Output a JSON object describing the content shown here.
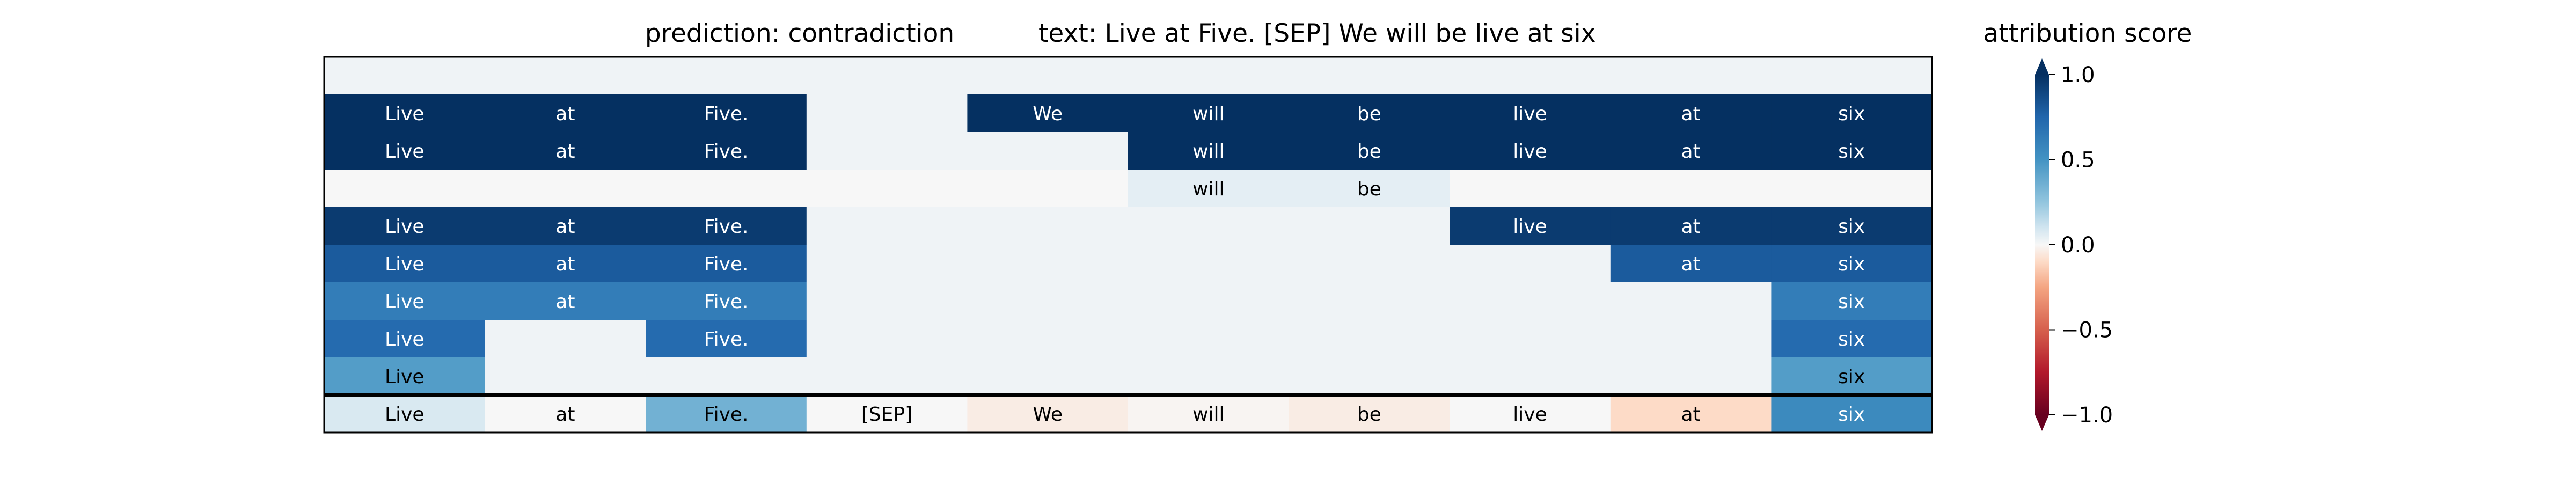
{
  "chart_data": {
    "type": "heatmap",
    "title_prediction": "prediction:  contradiction",
    "title_text": "text:  Live at Five. [SEP] We will be live at six",
    "colorbar": {
      "title": "attribution score",
      "ticks": [
        "1.0",
        "0.5",
        "0.0",
        "−0.5",
        "−1.0"
      ],
      "tick_values": [
        1.0,
        0.5,
        0.0,
        -0.5,
        -1.0
      ],
      "range": [
        -1.0,
        1.0
      ],
      "colormap": "RdBu"
    },
    "tokens": [
      "Live",
      "at",
      "Five.",
      "[SEP]",
      "We",
      "will",
      "be",
      "live",
      "at",
      "six"
    ],
    "coalition_rows": [
      {
        "cells": [
          0,
          0,
          0,
          0,
          0,
          0,
          0,
          0,
          0,
          0
        ],
        "values": [
          0.02,
          0.02,
          0.02,
          0.02,
          0.02,
          0.02,
          0.02,
          0.02,
          0.02,
          0.02
        ]
      },
      {
        "cells": [
          1,
          1,
          1,
          0,
          1,
          1,
          1,
          1,
          1,
          1
        ],
        "values": [
          1.0,
          1.0,
          1.0,
          0.02,
          1.0,
          1.0,
          1.0,
          1.0,
          1.0,
          1.0
        ]
      },
      {
        "cells": [
          1,
          1,
          1,
          0,
          0,
          1,
          1,
          1,
          1,
          1
        ],
        "values": [
          1.0,
          1.0,
          1.0,
          0.02,
          0.02,
          1.0,
          1.0,
          1.0,
          1.0,
          1.0
        ]
      },
      {
        "cells": [
          0,
          0,
          0,
          0,
          0,
          1,
          1,
          0,
          0,
          0
        ],
        "values": [
          0.0,
          0.0,
          0.0,
          0.0,
          0.0,
          0.05,
          0.05,
          0.0,
          0.0,
          0.0
        ]
      },
      {
        "cells": [
          1,
          1,
          1,
          0,
          0,
          0,
          0,
          1,
          1,
          1
        ],
        "values": [
          0.95,
          0.95,
          0.95,
          0.02,
          0.02,
          0.02,
          0.02,
          0.95,
          0.95,
          0.95
        ]
      },
      {
        "cells": [
          1,
          1,
          1,
          0,
          0,
          0,
          0,
          0,
          1,
          1
        ],
        "values": [
          0.8,
          0.8,
          0.8,
          0.02,
          0.02,
          0.02,
          0.02,
          0.02,
          0.8,
          0.8
        ]
      },
      {
        "cells": [
          1,
          1,
          1,
          0,
          0,
          0,
          0,
          0,
          0,
          1
        ],
        "values": [
          0.62,
          0.62,
          0.62,
          0.02,
          0.02,
          0.02,
          0.02,
          0.02,
          0.02,
          0.62
        ]
      },
      {
        "cells": [
          1,
          0,
          1,
          0,
          0,
          0,
          0,
          0,
          0,
          1
        ],
        "values": [
          0.72,
          0.02,
          0.72,
          0.02,
          0.02,
          0.02,
          0.02,
          0.02,
          0.02,
          0.72
        ]
      },
      {
        "cells": [
          1,
          0,
          0,
          0,
          0,
          0,
          0,
          0,
          0,
          1
        ],
        "values": [
          0.45,
          0.02,
          0.02,
          0.02,
          0.02,
          0.02,
          0.02,
          0.02,
          0.02,
          0.45
        ]
      }
    ],
    "attribution_row": {
      "values": [
        0.08,
        0.0,
        0.35,
        0.0,
        -0.04,
        -0.01,
        -0.04,
        0.0,
        -0.1,
        0.55
      ]
    }
  }
}
